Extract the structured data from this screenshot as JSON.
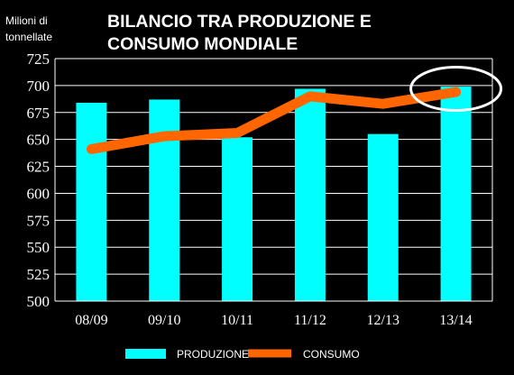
{
  "chart_data": {
    "type": "bar",
    "title_lines": [
      "BILANCIO TRA PRODUZIONE E",
      "CONSUMO MONDIALE"
    ],
    "ylabel_lines": [
      "Milioni di",
      "tonnellate"
    ],
    "xlabel": "",
    "categories": [
      "08/09",
      "09/10",
      "10/11",
      "11/12",
      "12/13",
      "13/14"
    ],
    "series": [
      {
        "name": "PRODUZIONE",
        "render": "bar",
        "color": "#00FFFF",
        "values": [
          684,
          687,
          652,
          697,
          655,
          699
        ]
      },
      {
        "name": "CONSUMO",
        "render": "line",
        "color": "#FF6600",
        "values": [
          641,
          653,
          656,
          690,
          683,
          694
        ]
      }
    ],
    "ylim": [
      500,
      725
    ],
    "yticks": [
      500,
      525,
      550,
      575,
      600,
      625,
      650,
      675,
      700,
      725
    ],
    "grid": true,
    "legend_position": "bottom",
    "annotation": "white ellipse highlighting 13/14",
    "colors": {
      "background": "#000000",
      "plot_background": "#000000",
      "gridline": "#FFFFFF",
      "text": "#FFFFFF",
      "highlight_ellipse": "#FFFFFF"
    }
  }
}
